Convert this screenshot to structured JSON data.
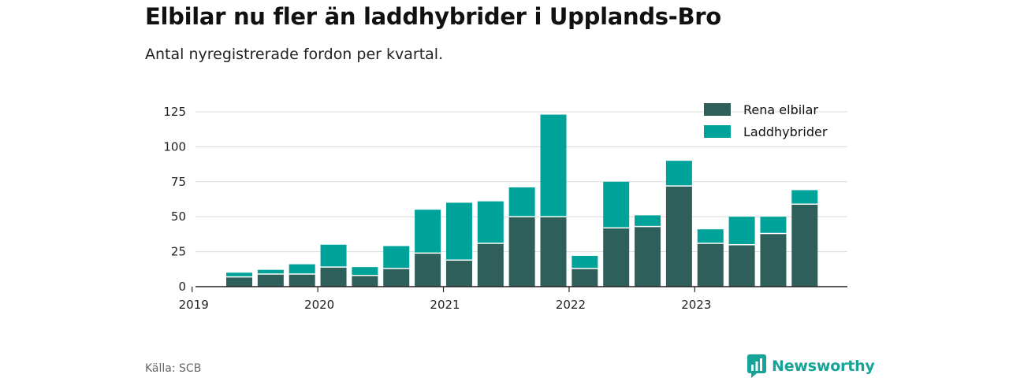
{
  "title": "Elbilar nu fler än laddhybrider i Upplands-Bro",
  "subtitle": "Antal nyregistrerade fordon per kvartal.",
  "source": "Källa: SCB",
  "brand": "Newsworthy",
  "colors": {
    "elbilar": "#2f5f5a",
    "laddhybrider": "#00a39a",
    "grid": "#d9d9d9",
    "axis": "#222222"
  },
  "chart_data": {
    "type": "bar",
    "stacked": true,
    "title": "Elbilar nu fler än laddhybrider i Upplands-Bro",
    "subtitle": "Antal nyregistrerade fordon per kvartal.",
    "xlabel": "",
    "ylabel": "",
    "ylim": [
      0,
      135
    ],
    "yticks": [
      0,
      25,
      50,
      75,
      100,
      125
    ],
    "x_tick_labels": [
      "2019",
      "2020",
      "2021",
      "2022",
      "2023"
    ],
    "categories": [
      "2019 Q2",
      "2019 Q3",
      "2019 Q4",
      "2020 Q1",
      "2020 Q2",
      "2020 Q3",
      "2020 Q4",
      "2021 Q1",
      "2021 Q2",
      "2021 Q3",
      "2021 Q4",
      "2022 Q1",
      "2022 Q2",
      "2022 Q3",
      "2022 Q4",
      "2023 Q1",
      "2023 Q2",
      "2023 Q3",
      "2023 Q4"
    ],
    "series": [
      {
        "name": "Rena elbilar",
        "values": [
          7,
          9,
          9,
          14,
          8,
          13,
          24,
          19,
          31,
          50,
          50,
          13,
          42,
          43,
          72,
          31,
          30,
          38,
          59
        ]
      },
      {
        "name": "Laddhybrider",
        "values": [
          3,
          3,
          7,
          16,
          6,
          16,
          31,
          41,
          30,
          21,
          73,
          9,
          33,
          8,
          18,
          10,
          20,
          12,
          10
        ]
      }
    ],
    "legend": [
      "Rena elbilar",
      "Laddhybrider"
    ],
    "legend_position": "top-right",
    "grid": true
  }
}
